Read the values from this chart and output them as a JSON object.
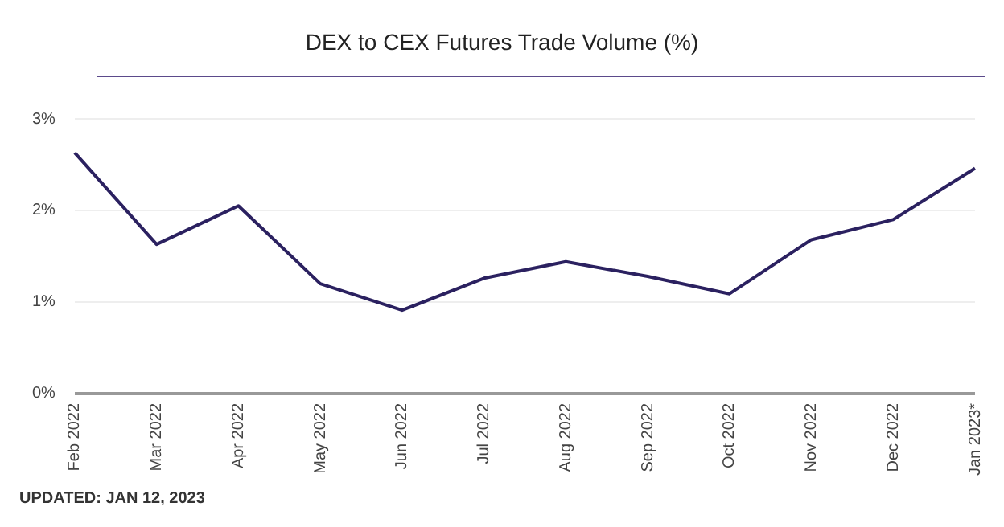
{
  "chart_data": {
    "type": "line",
    "title": "DEX to CEX Futures Trade Volume (%)",
    "categories": [
      "Feb 2022",
      "Mar 2022",
      "Apr 2022",
      "May 2022",
      "Jun 2022",
      "Jul 2022",
      "Aug 2022",
      "Sep 2022",
      "Oct 2022",
      "Nov 2022",
      "Dec 2022",
      "Jan 2023*"
    ],
    "series": [
      {
        "color": "#2b2160",
        "values": [
          2.63,
          1.63,
          2.05,
          1.2,
          0.91,
          1.26,
          1.44,
          1.28,
          1.09,
          1.68,
          1.9,
          2.46
        ]
      }
    ],
    "ylim": [
      0,
      3
    ],
    "yticks": [
      {
        "value": 0,
        "label": "0%"
      },
      {
        "value": 1,
        "label": "1%"
      },
      {
        "value": 2,
        "label": "2%"
      },
      {
        "value": 3,
        "label": "3%"
      }
    ],
    "grid": "y",
    "marker": "none",
    "annotations": [
      "UPDATED: JAN 12, 2023"
    ]
  }
}
